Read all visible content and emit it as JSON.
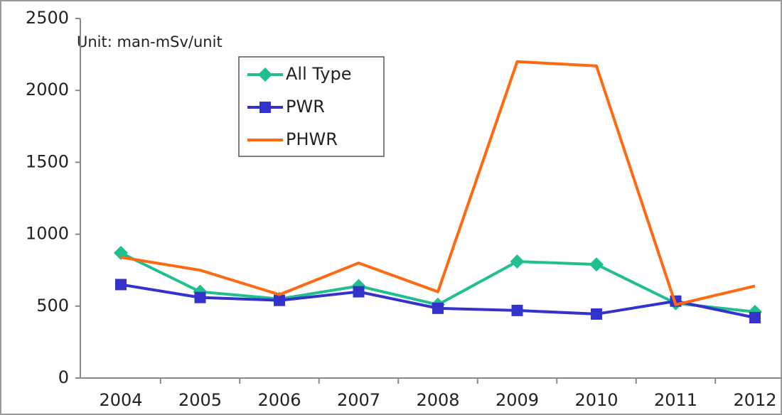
{
  "chart_data": {
    "type": "line",
    "annotation": "Unit: man-mSv/unit",
    "categories": [
      "2004",
      "2005",
      "2006",
      "2007",
      "2008",
      "2009",
      "2010",
      "2011",
      "2012"
    ],
    "series": [
      {
        "name": "All Type",
        "color": "#1fbf8f",
        "marker": "diamond",
        "values": [
          870,
          600,
          550,
          640,
          510,
          810,
          790,
          520,
          460
        ]
      },
      {
        "name": "PWR",
        "color": "#3333cc",
        "marker": "square",
        "values": [
          650,
          560,
          540,
          600,
          485,
          470,
          445,
          535,
          420
        ]
      },
      {
        "name": "PHWR",
        "color": "#ff6a10",
        "marker": "none",
        "values": [
          840,
          750,
          580,
          800,
          600,
          2200,
          2170,
          510,
          640
        ]
      }
    ],
    "ylim": [
      0,
      2500
    ],
    "yticks": [
      0,
      500,
      1000,
      1500,
      2000,
      2500
    ],
    "grid": false,
    "legend": "top-left"
  }
}
